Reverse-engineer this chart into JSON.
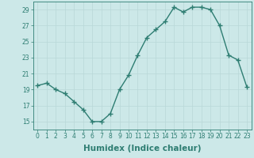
{
  "x": [
    0,
    1,
    2,
    3,
    4,
    5,
    6,
    7,
    8,
    9,
    10,
    11,
    12,
    13,
    14,
    15,
    16,
    17,
    18,
    19,
    20,
    21,
    22,
    23
  ],
  "y": [
    19.5,
    19.8,
    19.0,
    18.5,
    17.5,
    16.5,
    15.0,
    15.0,
    16.0,
    19.0,
    20.8,
    23.3,
    25.5,
    26.5,
    27.5,
    29.3,
    28.7,
    29.3,
    29.3,
    29.0,
    27.0,
    23.3,
    22.7,
    19.3
  ],
  "line_color": "#2e7d72",
  "marker": "+",
  "marker_color": "#2e7d72",
  "bg_color": "#cce8e8",
  "grid_color": "#b8d8d8",
  "xlabel": "Humidex (Indice chaleur)",
  "ylim": [
    14,
    30
  ],
  "xlim": [
    -0.5,
    23.5
  ],
  "yticks": [
    15,
    17,
    19,
    21,
    23,
    25,
    27,
    29
  ],
  "xticks": [
    0,
    1,
    2,
    3,
    4,
    5,
    6,
    7,
    8,
    9,
    10,
    11,
    12,
    13,
    14,
    15,
    16,
    17,
    18,
    19,
    20,
    21,
    22,
    23
  ],
  "tick_label_fontsize": 5.5,
  "xlabel_fontsize": 7.5,
  "line_width": 1.0,
  "marker_size": 4
}
